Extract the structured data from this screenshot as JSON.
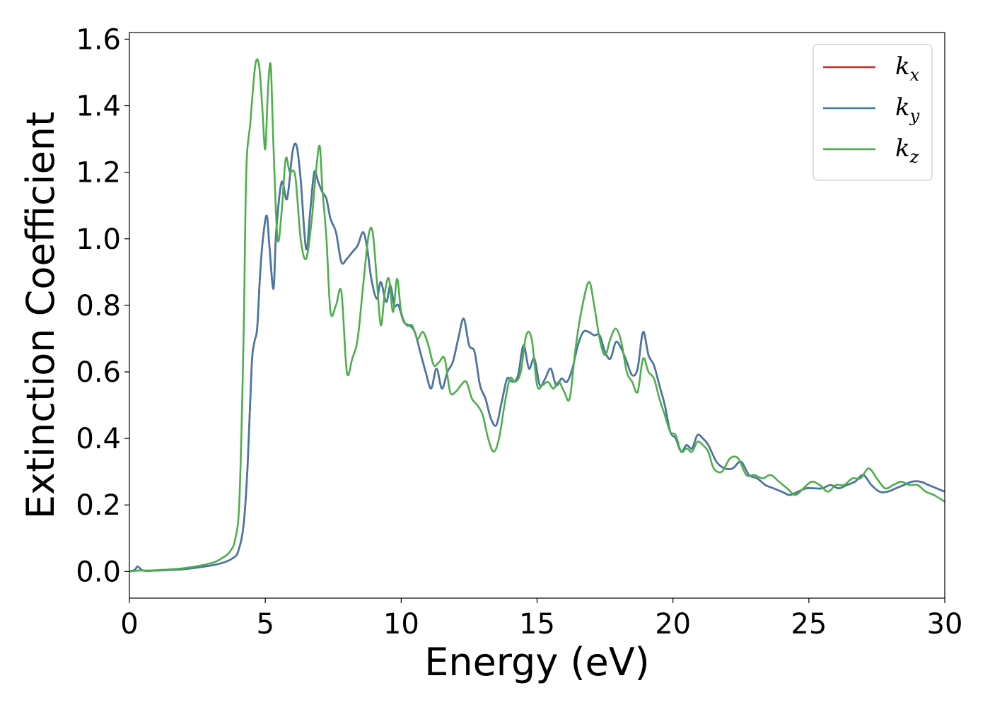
{
  "chart_data": {
    "type": "line",
    "title": "",
    "xlabel": "Energy (eV)",
    "ylabel": "Extinction Coefficient",
    "xlim": [
      0,
      30
    ],
    "ylim": [
      -0.08,
      1.62
    ],
    "xticks": [
      0,
      5,
      10,
      15,
      20,
      25,
      30
    ],
    "xtick_labels": [
      "0",
      "5",
      "10",
      "15",
      "20",
      "25",
      "30"
    ],
    "yticks": [
      0.0,
      0.2,
      0.4,
      0.6,
      0.8,
      1.0,
      1.2,
      1.4,
      1.6
    ],
    "ytick_labels": [
      "0.0",
      "0.2",
      "0.4",
      "0.6",
      "0.8",
      "1.0",
      "1.2",
      "1.4",
      "1.6"
    ],
    "grid": false,
    "legend_position": "top-right",
    "series": [
      {
        "name": "k_x",
        "legend_base": "k",
        "legend_sub": "x",
        "color": "#d62728",
        "x": [
          0,
          0.2,
          0.3,
          0.45,
          0.6,
          1,
          2,
          3,
          3.5,
          3.8,
          4.0,
          4.2,
          4.35,
          4.5,
          4.6,
          4.7,
          4.8,
          4.9,
          5.05,
          5.15,
          5.3,
          5.4,
          5.6,
          5.8,
          6.0,
          6.15,
          6.3,
          6.5,
          6.65,
          6.8,
          6.95,
          7.1,
          7.25,
          7.4,
          7.6,
          7.8,
          8.0,
          8.2,
          8.4,
          8.6,
          8.75,
          8.9,
          9.1,
          9.25,
          9.45,
          9.6,
          9.75,
          9.9,
          10.1,
          10.3,
          10.5,
          10.7,
          10.9,
          11.1,
          11.3,
          11.5,
          11.7,
          11.9,
          12.1,
          12.3,
          12.5,
          12.7,
          12.9,
          13.1,
          13.3,
          13.5,
          13.7,
          13.9,
          14.1,
          14.3,
          14.5,
          14.7,
          14.9,
          15.1,
          15.3,
          15.5,
          15.7,
          15.9,
          16.1,
          16.3,
          16.5,
          16.7,
          16.9,
          17.1,
          17.3,
          17.5,
          17.7,
          17.9,
          18.1,
          18.3,
          18.5,
          18.7,
          18.9,
          19.1,
          19.3,
          19.5,
          19.7,
          19.9,
          20.1,
          20.3,
          20.5,
          20.7,
          20.9,
          21.1,
          21.3,
          21.6,
          21.9,
          22.2,
          22.5,
          22.8,
          23.1,
          23.4,
          23.7,
          24.0,
          24.3,
          24.6,
          24.9,
          25.2,
          25.5,
          25.8,
          26.1,
          26.4,
          26.7,
          27.0,
          27.3,
          27.6,
          27.9,
          28.2,
          28.5,
          28.8,
          29.1,
          29.4,
          29.7,
          30.0
        ],
        "y": [
          0.0,
          0.005,
          0.015,
          0.005,
          0.002,
          0.003,
          0.007,
          0.018,
          0.028,
          0.04,
          0.06,
          0.14,
          0.32,
          0.62,
          0.69,
          0.73,
          0.88,
          0.99,
          1.07,
          0.98,
          0.85,
          1.02,
          1.17,
          1.12,
          1.26,
          1.28,
          1.18,
          0.97,
          1.08,
          1.2,
          1.17,
          1.14,
          1.12,
          1.06,
          1.02,
          0.93,
          0.94,
          0.96,
          0.98,
          1.02,
          0.97,
          0.88,
          0.82,
          0.87,
          0.81,
          0.86,
          0.8,
          0.8,
          0.75,
          0.74,
          0.72,
          0.66,
          0.6,
          0.55,
          0.61,
          0.55,
          0.6,
          0.63,
          0.7,
          0.76,
          0.68,
          0.66,
          0.56,
          0.52,
          0.46,
          0.44,
          0.51,
          0.58,
          0.57,
          0.59,
          0.68,
          0.61,
          0.64,
          0.56,
          0.58,
          0.61,
          0.56,
          0.58,
          0.57,
          0.61,
          0.68,
          0.72,
          0.72,
          0.71,
          0.71,
          0.66,
          0.64,
          0.69,
          0.67,
          0.63,
          0.59,
          0.61,
          0.72,
          0.65,
          0.62,
          0.56,
          0.5,
          0.42,
          0.4,
          0.36,
          0.38,
          0.37,
          0.41,
          0.4,
          0.38,
          0.33,
          0.31,
          0.31,
          0.33,
          0.29,
          0.28,
          0.26,
          0.25,
          0.24,
          0.23,
          0.24,
          0.25,
          0.25,
          0.25,
          0.26,
          0.25,
          0.26,
          0.27,
          0.29,
          0.26,
          0.24,
          0.24,
          0.25,
          0.26,
          0.27,
          0.27,
          0.26,
          0.25,
          0.24
        ]
      },
      {
        "name": "k_y",
        "legend_base": "k",
        "legend_sub": "y",
        "color": "#4477aa",
        "x": [
          0,
          0.2,
          0.3,
          0.45,
          0.6,
          1,
          2,
          3,
          3.5,
          3.8,
          4.0,
          4.2,
          4.35,
          4.5,
          4.6,
          4.7,
          4.8,
          4.9,
          5.05,
          5.15,
          5.3,
          5.4,
          5.6,
          5.8,
          6.0,
          6.15,
          6.3,
          6.5,
          6.65,
          6.8,
          6.95,
          7.1,
          7.25,
          7.4,
          7.6,
          7.8,
          8.0,
          8.2,
          8.4,
          8.6,
          8.75,
          8.9,
          9.1,
          9.25,
          9.45,
          9.6,
          9.75,
          9.9,
          10.1,
          10.3,
          10.5,
          10.7,
          10.9,
          11.1,
          11.3,
          11.5,
          11.7,
          11.9,
          12.1,
          12.3,
          12.5,
          12.7,
          12.9,
          13.1,
          13.3,
          13.5,
          13.7,
          13.9,
          14.1,
          14.3,
          14.5,
          14.7,
          14.9,
          15.1,
          15.3,
          15.5,
          15.7,
          15.9,
          16.1,
          16.3,
          16.5,
          16.7,
          16.9,
          17.1,
          17.3,
          17.5,
          17.7,
          17.9,
          18.1,
          18.3,
          18.5,
          18.7,
          18.9,
          19.1,
          19.3,
          19.5,
          19.7,
          19.9,
          20.1,
          20.3,
          20.5,
          20.7,
          20.9,
          21.1,
          21.3,
          21.6,
          21.9,
          22.2,
          22.5,
          22.8,
          23.1,
          23.4,
          23.7,
          24.0,
          24.3,
          24.6,
          24.9,
          25.2,
          25.5,
          25.8,
          26.1,
          26.4,
          26.7,
          27.0,
          27.3,
          27.6,
          27.9,
          28.2,
          28.5,
          28.8,
          29.1,
          29.4,
          29.7,
          30.0
        ],
        "y": [
          0.0,
          0.005,
          0.015,
          0.005,
          0.002,
          0.003,
          0.007,
          0.018,
          0.028,
          0.04,
          0.06,
          0.14,
          0.32,
          0.62,
          0.69,
          0.73,
          0.88,
          0.99,
          1.07,
          0.98,
          0.85,
          1.02,
          1.17,
          1.12,
          1.26,
          1.28,
          1.18,
          0.97,
          1.08,
          1.2,
          1.17,
          1.14,
          1.12,
          1.06,
          1.02,
          0.93,
          0.94,
          0.96,
          0.98,
          1.02,
          0.97,
          0.88,
          0.82,
          0.87,
          0.81,
          0.86,
          0.8,
          0.8,
          0.75,
          0.74,
          0.72,
          0.66,
          0.6,
          0.55,
          0.61,
          0.55,
          0.6,
          0.63,
          0.7,
          0.76,
          0.68,
          0.66,
          0.56,
          0.52,
          0.46,
          0.44,
          0.51,
          0.58,
          0.57,
          0.59,
          0.68,
          0.61,
          0.64,
          0.56,
          0.58,
          0.61,
          0.56,
          0.58,
          0.57,
          0.61,
          0.68,
          0.72,
          0.72,
          0.71,
          0.71,
          0.66,
          0.64,
          0.69,
          0.67,
          0.63,
          0.59,
          0.61,
          0.72,
          0.65,
          0.62,
          0.56,
          0.5,
          0.42,
          0.4,
          0.36,
          0.38,
          0.37,
          0.41,
          0.4,
          0.38,
          0.33,
          0.31,
          0.31,
          0.33,
          0.29,
          0.28,
          0.26,
          0.25,
          0.24,
          0.23,
          0.24,
          0.25,
          0.25,
          0.25,
          0.26,
          0.25,
          0.26,
          0.27,
          0.29,
          0.26,
          0.24,
          0.24,
          0.25,
          0.26,
          0.27,
          0.27,
          0.26,
          0.25,
          0.24
        ]
      },
      {
        "name": "k_z",
        "legend_base": "k",
        "legend_sub": "z",
        "color": "#4daf4a",
        "x": [
          0,
          0.2,
          0.4,
          0.6,
          1,
          2,
          3,
          3.4,
          3.7,
          3.9,
          4.05,
          4.2,
          4.3,
          4.45,
          4.6,
          4.7,
          4.8,
          4.9,
          5.0,
          5.1,
          5.2,
          5.3,
          5.45,
          5.6,
          5.75,
          5.9,
          6.1,
          6.3,
          6.5,
          6.7,
          6.85,
          7.0,
          7.1,
          7.25,
          7.4,
          7.6,
          7.8,
          8.0,
          8.2,
          8.4,
          8.6,
          8.8,
          8.95,
          9.1,
          9.25,
          9.4,
          9.55,
          9.7,
          9.85,
          10.0,
          10.2,
          10.4,
          10.6,
          10.8,
          11.0,
          11.2,
          11.4,
          11.6,
          11.8,
          12.0,
          12.2,
          12.4,
          12.6,
          12.8,
          13.0,
          13.2,
          13.4,
          13.6,
          13.8,
          14.0,
          14.2,
          14.4,
          14.6,
          14.8,
          15.0,
          15.2,
          15.4,
          15.6,
          15.8,
          16.0,
          16.2,
          16.4,
          16.6,
          16.9,
          17.1,
          17.3,
          17.5,
          17.7,
          17.9,
          18.1,
          18.3,
          18.5,
          18.7,
          18.9,
          19.1,
          19.3,
          19.5,
          19.7,
          19.9,
          20.1,
          20.3,
          20.5,
          20.7,
          20.9,
          21.1,
          21.3,
          21.5,
          21.8,
          22.1,
          22.4,
          22.7,
          23.0,
          23.3,
          23.6,
          23.9,
          24.2,
          24.5,
          24.8,
          25.1,
          25.4,
          25.7,
          26.0,
          26.3,
          26.6,
          26.9,
          27.2,
          27.5,
          27.8,
          28.1,
          28.4,
          28.7,
          29.0,
          29.3,
          29.6,
          30.0
        ],
        "y": [
          0.0,
          0.002,
          0.003,
          0.003,
          0.004,
          0.01,
          0.025,
          0.04,
          0.06,
          0.1,
          0.22,
          0.7,
          1.2,
          1.35,
          1.5,
          1.54,
          1.5,
          1.38,
          1.27,
          1.45,
          1.52,
          1.28,
          1.0,
          1.08,
          1.24,
          1.2,
          1.19,
          1.0,
          0.94,
          1.05,
          1.19,
          1.28,
          1.15,
          1.0,
          0.78,
          0.8,
          0.84,
          0.6,
          0.64,
          0.7,
          0.86,
          1.01,
          1.02,
          0.88,
          0.74,
          0.84,
          0.88,
          0.78,
          0.88,
          0.78,
          0.74,
          0.74,
          0.7,
          0.72,
          0.68,
          0.62,
          0.63,
          0.64,
          0.54,
          0.54,
          0.56,
          0.57,
          0.52,
          0.5,
          0.47,
          0.4,
          0.36,
          0.4,
          0.5,
          0.58,
          0.57,
          0.6,
          0.71,
          0.7,
          0.56,
          0.56,
          0.57,
          0.55,
          0.57,
          0.54,
          0.52,
          0.66,
          0.77,
          0.87,
          0.8,
          0.7,
          0.65,
          0.7,
          0.73,
          0.69,
          0.6,
          0.57,
          0.54,
          0.64,
          0.6,
          0.58,
          0.52,
          0.47,
          0.42,
          0.41,
          0.36,
          0.37,
          0.36,
          0.39,
          0.38,
          0.36,
          0.31,
          0.3,
          0.34,
          0.34,
          0.29,
          0.29,
          0.28,
          0.29,
          0.27,
          0.25,
          0.23,
          0.25,
          0.27,
          0.26,
          0.24,
          0.26,
          0.26,
          0.28,
          0.28,
          0.31,
          0.28,
          0.25,
          0.26,
          0.27,
          0.26,
          0.26,
          0.24,
          0.23,
          0.21
        ]
      }
    ]
  }
}
